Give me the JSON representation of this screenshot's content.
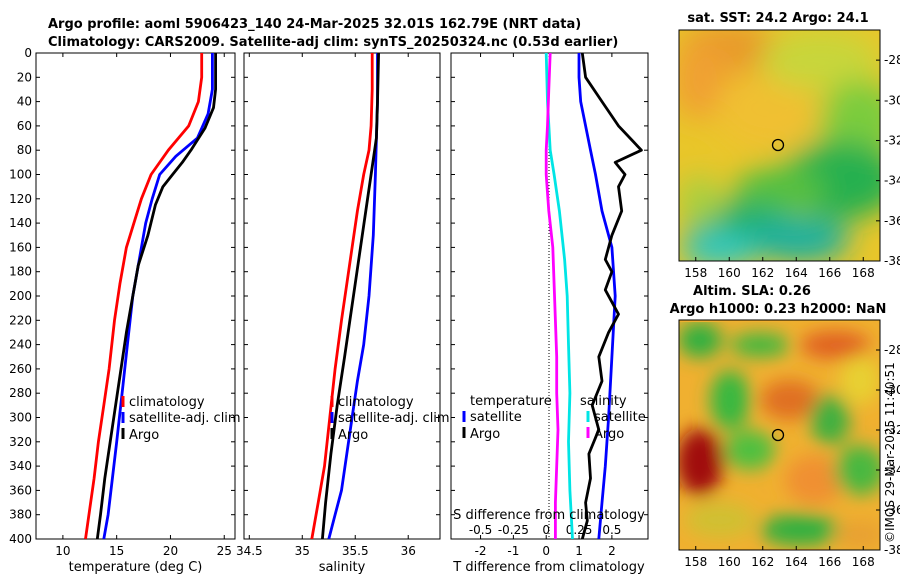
{
  "figure": {
    "title_line1": "Argo profile: aoml 5906423_140 24-Mar-2025 32.01S 162.79E (NRT data)",
    "title_line2": "Climatology: CARS2009. Satellite-adj clim: synTS_20250324.nc (0.53d earlier)",
    "footer": "©IMOS 29-Mar-2025 11:40:51"
  },
  "colors": {
    "climatology": "#ff0000",
    "satellite": "#0000ff",
    "argo": "#000000",
    "sat_salinity": "#00e5e5",
    "argo_salinity": "#ff00ff"
  },
  "chart_data": [
    {
      "type": "line",
      "id": "temperature",
      "xlabel": "temperature (deg C)",
      "ylabel": "",
      "xlim": [
        7.5,
        26
      ],
      "ylim": [
        0,
        400
      ],
      "yreversed": true,
      "xticks": [
        10,
        15,
        20,
        25
      ],
      "yticks": [
        0,
        20,
        40,
        60,
        80,
        100,
        120,
        140,
        160,
        180,
        200,
        220,
        240,
        260,
        280,
        300,
        320,
        340,
        360,
        380,
        400
      ],
      "legend": [
        "climatology",
        "satellite-adj. clim",
        "Argo"
      ],
      "legend_position": "lower-right",
      "series": [
        {
          "name": "climatology",
          "color": "#ff0000",
          "x": [
            22.9,
            22.9,
            22.6,
            21.7,
            19.8,
            18.2,
            17.3,
            16.6,
            15.9,
            15.3,
            14.8,
            14.3,
            13.8,
            13.3,
            12.9,
            12.5,
            12.1
          ],
          "y": [
            0,
            20,
            40,
            60,
            80,
            100,
            120,
            140,
            160,
            190,
            220,
            260,
            290,
            320,
            350,
            375,
            400
          ]
        },
        {
          "name": "satellite-adj. clim",
          "color": "#0000ff",
          "x": [
            23.9,
            23.9,
            23.5,
            22.5,
            20.5,
            19.0,
            18.3,
            17.7,
            17.1,
            16.5,
            16.0,
            15.5,
            15.0,
            14.6,
            14.2,
            13.8
          ],
          "y": [
            0,
            30,
            50,
            70,
            85,
            100,
            120,
            140,
            170,
            200,
            240,
            280,
            320,
            350,
            380,
            400
          ]
        },
        {
          "name": "Argo",
          "color": "#000000",
          "x": [
            24.2,
            24.2,
            24.0,
            23.2,
            21.9,
            21.1,
            20.2,
            19.3,
            18.6,
            17.9,
            17.0,
            16.5,
            15.9,
            15.4,
            14.9,
            14.4,
            13.9,
            13.5,
            13.2
          ],
          "y": [
            0,
            30,
            45,
            62,
            80,
            90,
            100,
            110,
            125,
            150,
            175,
            200,
            230,
            260,
            290,
            320,
            350,
            380,
            400
          ]
        }
      ]
    },
    {
      "type": "line",
      "id": "salinity",
      "xlabel": "salinity",
      "ylabel": "",
      "xlim": [
        34.45,
        36.3
      ],
      "ylim": [
        0,
        400
      ],
      "yreversed": true,
      "xticks": [
        34.5,
        35,
        35.5,
        36
      ],
      "legend": [
        "climatology",
        "satellite-adj. clim",
        "Argo"
      ],
      "legend_position": "lower-right",
      "series": [
        {
          "name": "climatology",
          "color": "#ff0000",
          "x": [
            35.66,
            35.66,
            35.65,
            35.63,
            35.58,
            35.52,
            35.47,
            35.42,
            35.37,
            35.31,
            35.26,
            35.21,
            35.15,
            35.09
          ],
          "y": [
            0,
            30,
            60,
            80,
            100,
            130,
            160,
            190,
            220,
            260,
            300,
            340,
            370,
            400
          ]
        },
        {
          "name": "satellite-adj. clim",
          "color": "#0000ff",
          "x": [
            35.71,
            35.71,
            35.7,
            35.69,
            35.67,
            35.63,
            35.58,
            35.52,
            35.47,
            35.42,
            35.37,
            35.31,
            35.25
          ],
          "y": [
            0,
            40,
            70,
            100,
            150,
            200,
            240,
            270,
            300,
            330,
            360,
            380,
            400
          ]
        },
        {
          "name": "Argo",
          "color": "#000000",
          "x": [
            35.72,
            35.71,
            35.7,
            35.65,
            35.6,
            35.55,
            35.5,
            35.45,
            35.4,
            35.33,
            35.27,
            35.22,
            35.19
          ],
          "y": [
            0,
            40,
            70,
            100,
            130,
            160,
            190,
            220,
            250,
            290,
            330,
            370,
            400
          ]
        }
      ]
    },
    {
      "type": "line",
      "id": "difference",
      "xlabel": "T difference from climatology",
      "xlabel_top": "S difference from climatology",
      "xlim": [
        -2.9,
        3.1
      ],
      "xlim_salinity": [
        -0.725,
        0.775
      ],
      "ylim": [
        0,
        400
      ],
      "yreversed": true,
      "xticks": [
        -2,
        -1,
        0,
        1,
        2
      ],
      "xticks_salinity": [
        "-0.5",
        "-0.25",
        "0",
        "0.25",
        "0.5"
      ],
      "legend_temperature_title": "temperature",
      "legend_salinity_title": "salinity",
      "legend_temperature": [
        "satellite",
        "Argo"
      ],
      "legend_salinity": [
        "satellite",
        "Argo"
      ],
      "legend_position": "lower-center",
      "series": [
        {
          "name": "T satellite",
          "color": "#0000ff",
          "x": [
            1.0,
            1.0,
            1.05,
            1.2,
            1.35,
            1.5,
            1.7,
            2.0,
            2.1,
            2.0,
            1.9,
            1.8,
            1.7,
            1.6
          ],
          "y": [
            0,
            20,
            40,
            60,
            80,
            100,
            130,
            160,
            200,
            250,
            300,
            340,
            370,
            400
          ]
        },
        {
          "name": "T Argo",
          "color": "#000000",
          "x": [
            1.1,
            1.2,
            1.7,
            2.2,
            2.9,
            2.1,
            2.4,
            2.2,
            2.3,
            2.0,
            1.9,
            1.8,
            2.0,
            1.8,
            2.2,
            1.9,
            1.6,
            1.7,
            1.4,
            1.6,
            1.3,
            1.35,
            1.2,
            1.25,
            1.1
          ],
          "y": [
            0,
            20,
            40,
            60,
            80,
            90,
            100,
            110,
            130,
            150,
            160,
            170,
            180,
            195,
            215,
            230,
            250,
            270,
            290,
            310,
            330,
            350,
            370,
            385,
            400
          ]
        },
        {
          "name": "S satellite",
          "color": "#00e5e5",
          "x": [
            0.0,
            0.01,
            0.03,
            0.06,
            0.1,
            0.14,
            0.16,
            0.17,
            0.18,
            0.17,
            0.18,
            0.19,
            0.2
          ],
          "y": [
            0,
            40,
            80,
            100,
            130,
            170,
            200,
            240,
            280,
            320,
            360,
            380,
            400
          ]
        },
        {
          "name": "S Argo",
          "color": "#ff00ff",
          "x": [
            0.03,
            0.02,
            0.01,
            0.0,
            0.0,
            0.02,
            0.05,
            0.06,
            0.07,
            0.08,
            0.08,
            0.09,
            0.08,
            0.07,
            0.07
          ],
          "y": [
            0,
            30,
            60,
            80,
            100,
            130,
            160,
            190,
            220,
            250,
            280,
            310,
            340,
            370,
            400
          ]
        }
      ]
    },
    {
      "type": "heatmap",
      "id": "sst_map",
      "title": "sat. SST: 24.2 Argo: 24.1",
      "xlim": [
        157,
        169
      ],
      "ylim": [
        -38,
        -26.5
      ],
      "xticks": [
        158,
        160,
        162,
        164,
        166,
        168
      ],
      "yticks": [
        -28,
        -30,
        -32,
        -34,
        -36,
        -38
      ],
      "marker": {
        "lon": 162.79,
        "lat": -32.01
      }
    },
    {
      "type": "heatmap",
      "id": "sla_map",
      "title_line1": "Altim. SLA: 0.26",
      "title_line2": "Argo h1000: 0.23 h2000: NaN",
      "xlim": [
        157,
        169
      ],
      "ylim": [
        -38,
        -26.5
      ],
      "xticks": [
        158,
        160,
        162,
        164,
        166,
        168
      ],
      "yticks": [
        -28,
        -30,
        -32,
        -34,
        -36,
        -38
      ],
      "marker": {
        "lon": 162.79,
        "lat": -32.01
      }
    }
  ]
}
